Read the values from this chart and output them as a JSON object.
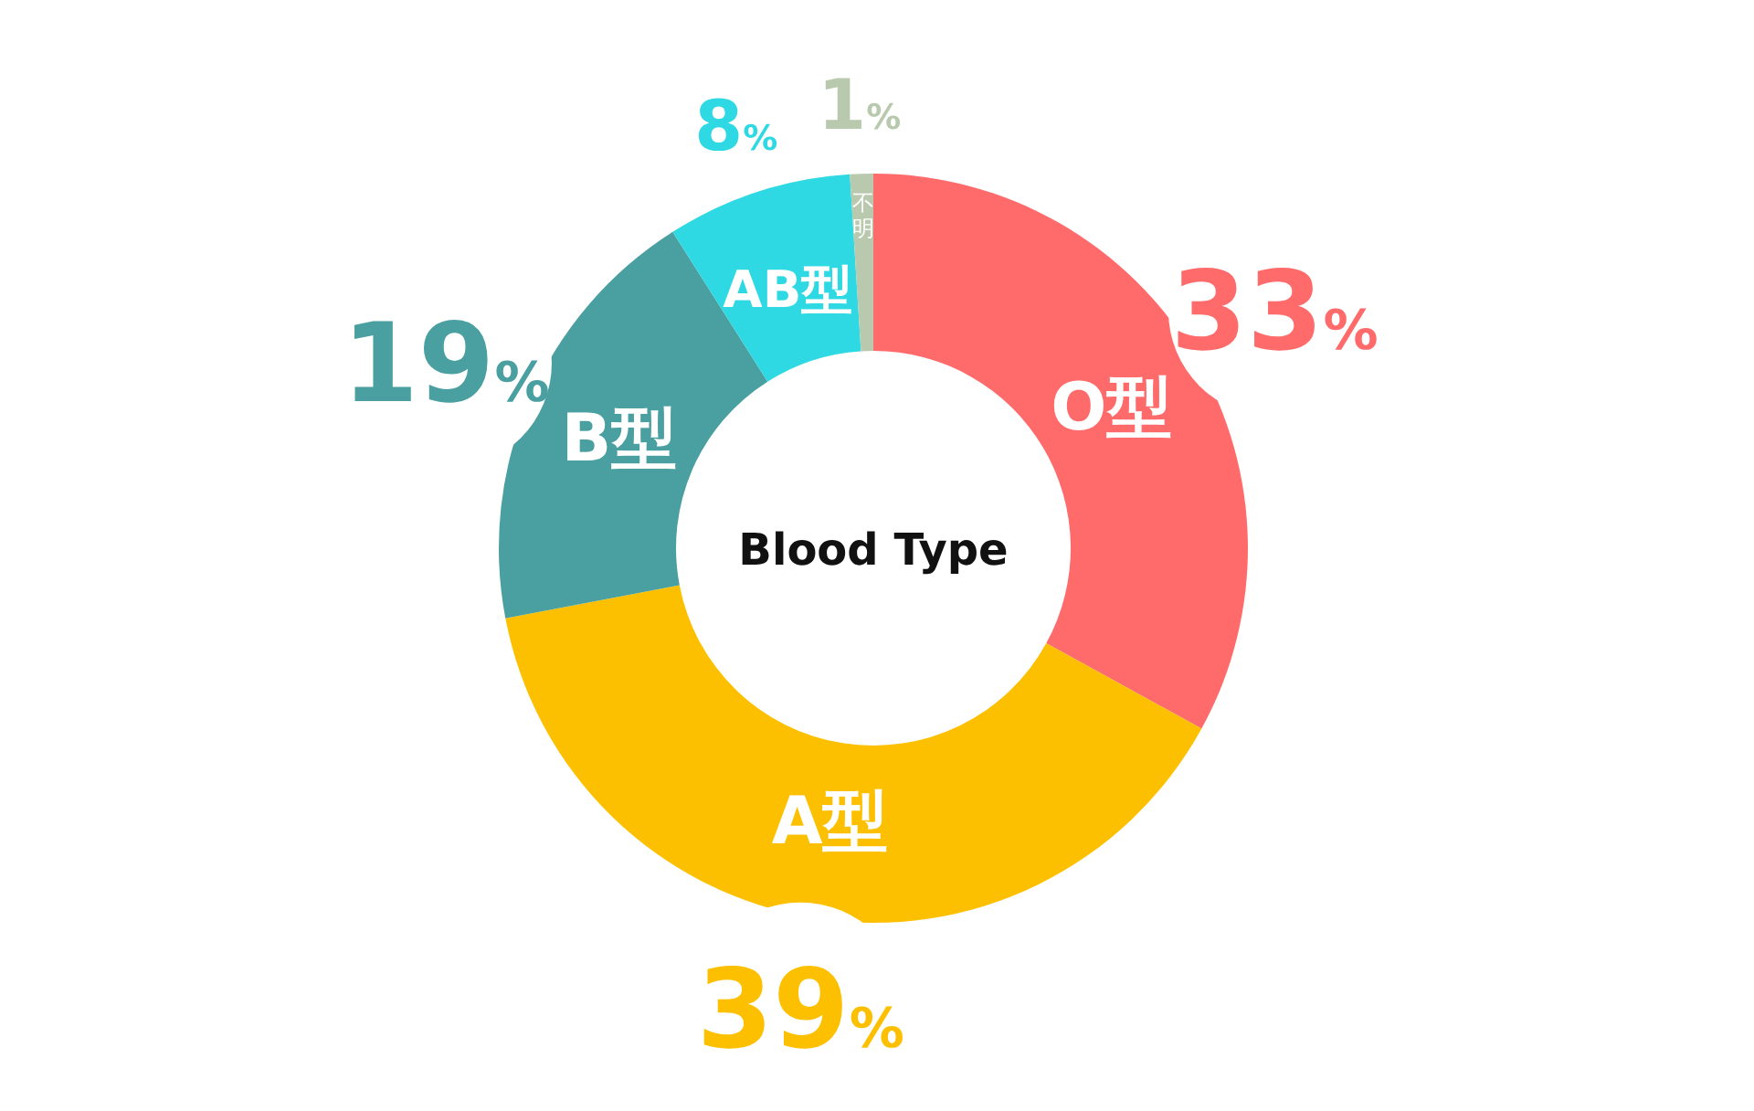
{
  "chart_data": {
    "type": "donut",
    "title": "Blood Type",
    "categories": [
      "O型",
      "A型",
      "B型",
      "AB型",
      "不明"
    ],
    "values": [
      33,
      39,
      19,
      8,
      1
    ],
    "colors": [
      "#ff6b6b",
      "#fdc000",
      "#4a9fa0",
      "#2fd9e3",
      "#b8c9ad"
    ],
    "value_labels": [
      "33%",
      "39%",
      "19%",
      "8%",
      "1%"
    ]
  }
}
